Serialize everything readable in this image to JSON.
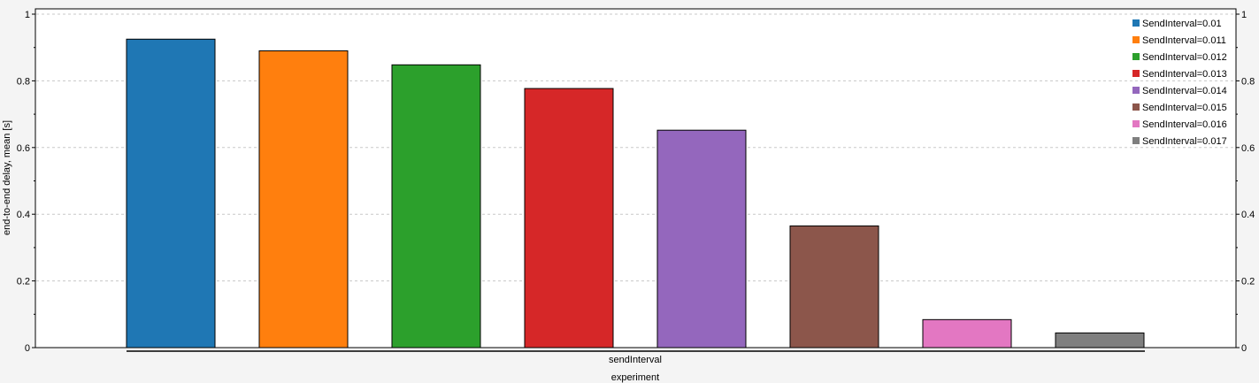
{
  "chart_data": {
    "type": "bar",
    "ylabel": "end-to-end delay, mean [s]",
    "xlabel": "experiment",
    "group_label": "sendInterval",
    "ylim": [
      0,
      1
    ],
    "yticks": [
      "0",
      "0.2",
      "0.4",
      "0.6",
      "0.8",
      "1"
    ],
    "grid": true,
    "legend_position": "top-right",
    "series": [
      {
        "name": "SendInterval=0.01",
        "value": 0.925,
        "color": "#1f77b4"
      },
      {
        "name": "SendInterval=0.011",
        "value": 0.89,
        "color": "#ff7f0e"
      },
      {
        "name": "SendInterval=0.012",
        "value": 0.848,
        "color": "#2ca02c"
      },
      {
        "name": "SendInterval=0.013",
        "value": 0.777,
        "color": "#d62728"
      },
      {
        "name": "SendInterval=0.014",
        "value": 0.652,
        "color": "#9467bd"
      },
      {
        "name": "SendInterval=0.015",
        "value": 0.365,
        "color": "#8c564b"
      },
      {
        "name": "SendInterval=0.016",
        "value": 0.084,
        "color": "#e377c2"
      },
      {
        "name": "SendInterval=0.017",
        "value": 0.044,
        "color": "#7f7f7f"
      }
    ]
  }
}
